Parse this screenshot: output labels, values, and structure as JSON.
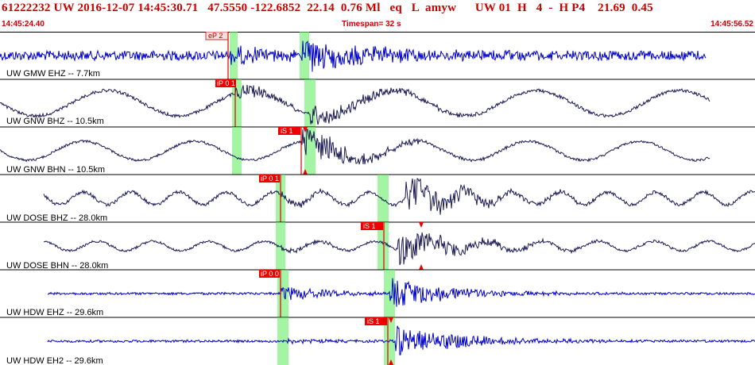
{
  "header": {
    "title": "61222232 UW 2016-12-07 14:45:30.71   47.5550 -122.6852  22.14  0.76 Ml   eq   L  amyw      UW 01  H   4  -  H P4    21.69  0.45",
    "time_start": "14:45:24.40",
    "timespan": "Timespan=  32 s",
    "time_end": "14:45:56.52"
  },
  "colors": {
    "blue_trace": "#0000cc",
    "dark_trace": "#1a1a55",
    "pick": "#ee0000",
    "phase_window": "#66ee66"
  },
  "channels": [
    {
      "label": "UW GMW EHZ -- 7.7km",
      "color": "blue",
      "pick": {
        "label": "eP 2",
        "style": "light"
      }
    },
    {
      "label": "UW GNW BHZ -- 10.5km",
      "color": "dark",
      "pick": {
        "label": "iP 0 1",
        "style": "solid"
      }
    },
    {
      "label": "UW GNW BHN -- 10.5km",
      "color": "dark",
      "pick": {
        "label": "iS 1",
        "style": "solid"
      }
    },
    {
      "label": "UW DOSE BHZ -- 28.0km",
      "color": "dark",
      "pick": {
        "label": "iP 0 1",
        "style": "solid"
      }
    },
    {
      "label": "UW DOSE BHN -- 28.0km",
      "color": "dark",
      "pick": {
        "label": "iS 1",
        "style": "solid"
      }
    },
    {
      "label": "UW HDW EHZ -- 29.6km",
      "color": "blue",
      "pick": {
        "label": "iP 0 0",
        "style": "solid"
      }
    },
    {
      "label": "UW HDW EH2 -- 29.6km",
      "color": "blue",
      "pick": {
        "label": "iS 1",
        "style": "solid"
      }
    }
  ]
}
